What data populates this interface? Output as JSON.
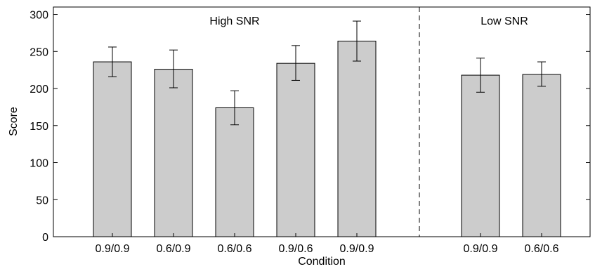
{
  "chart_data": {
    "type": "bar",
    "title": "",
    "xlabel": "Condition",
    "ylabel": "Score",
    "ylim": [
      0,
      310
    ],
    "yticks": [
      0,
      50,
      100,
      150,
      200,
      250,
      300
    ],
    "grid": false,
    "legend": "none",
    "bar_color": "#cccccc",
    "bars": [
      {
        "category": "0.9/0.9",
        "group": "High SNR",
        "value": 236,
        "err_low": 216,
        "err_high": 256
      },
      {
        "category": "0.6/0.9",
        "group": "High SNR",
        "value": 226,
        "err_low": 201,
        "err_high": 252
      },
      {
        "category": "0.6/0.6",
        "group": "High SNR",
        "value": 174,
        "err_low": 151,
        "err_high": 197
      },
      {
        "category": "0.9/0.6",
        "group": "High SNR",
        "value": 234,
        "err_low": 211,
        "err_high": 258
      },
      {
        "category": "0.9/0.9",
        "group": "High SNR",
        "value": 264,
        "err_low": 237,
        "err_high": 291
      },
      {
        "category": "0.9/0.9",
        "group": "Low SNR",
        "value": 218,
        "err_low": 195,
        "err_high": 241
      },
      {
        "category": "0.6/0.6",
        "group": "Low SNR",
        "value": 219,
        "err_low": 203,
        "err_high": 236
      }
    ],
    "groups": [
      {
        "label": "High SNR"
      },
      {
        "label": "Low SNR"
      }
    ]
  }
}
